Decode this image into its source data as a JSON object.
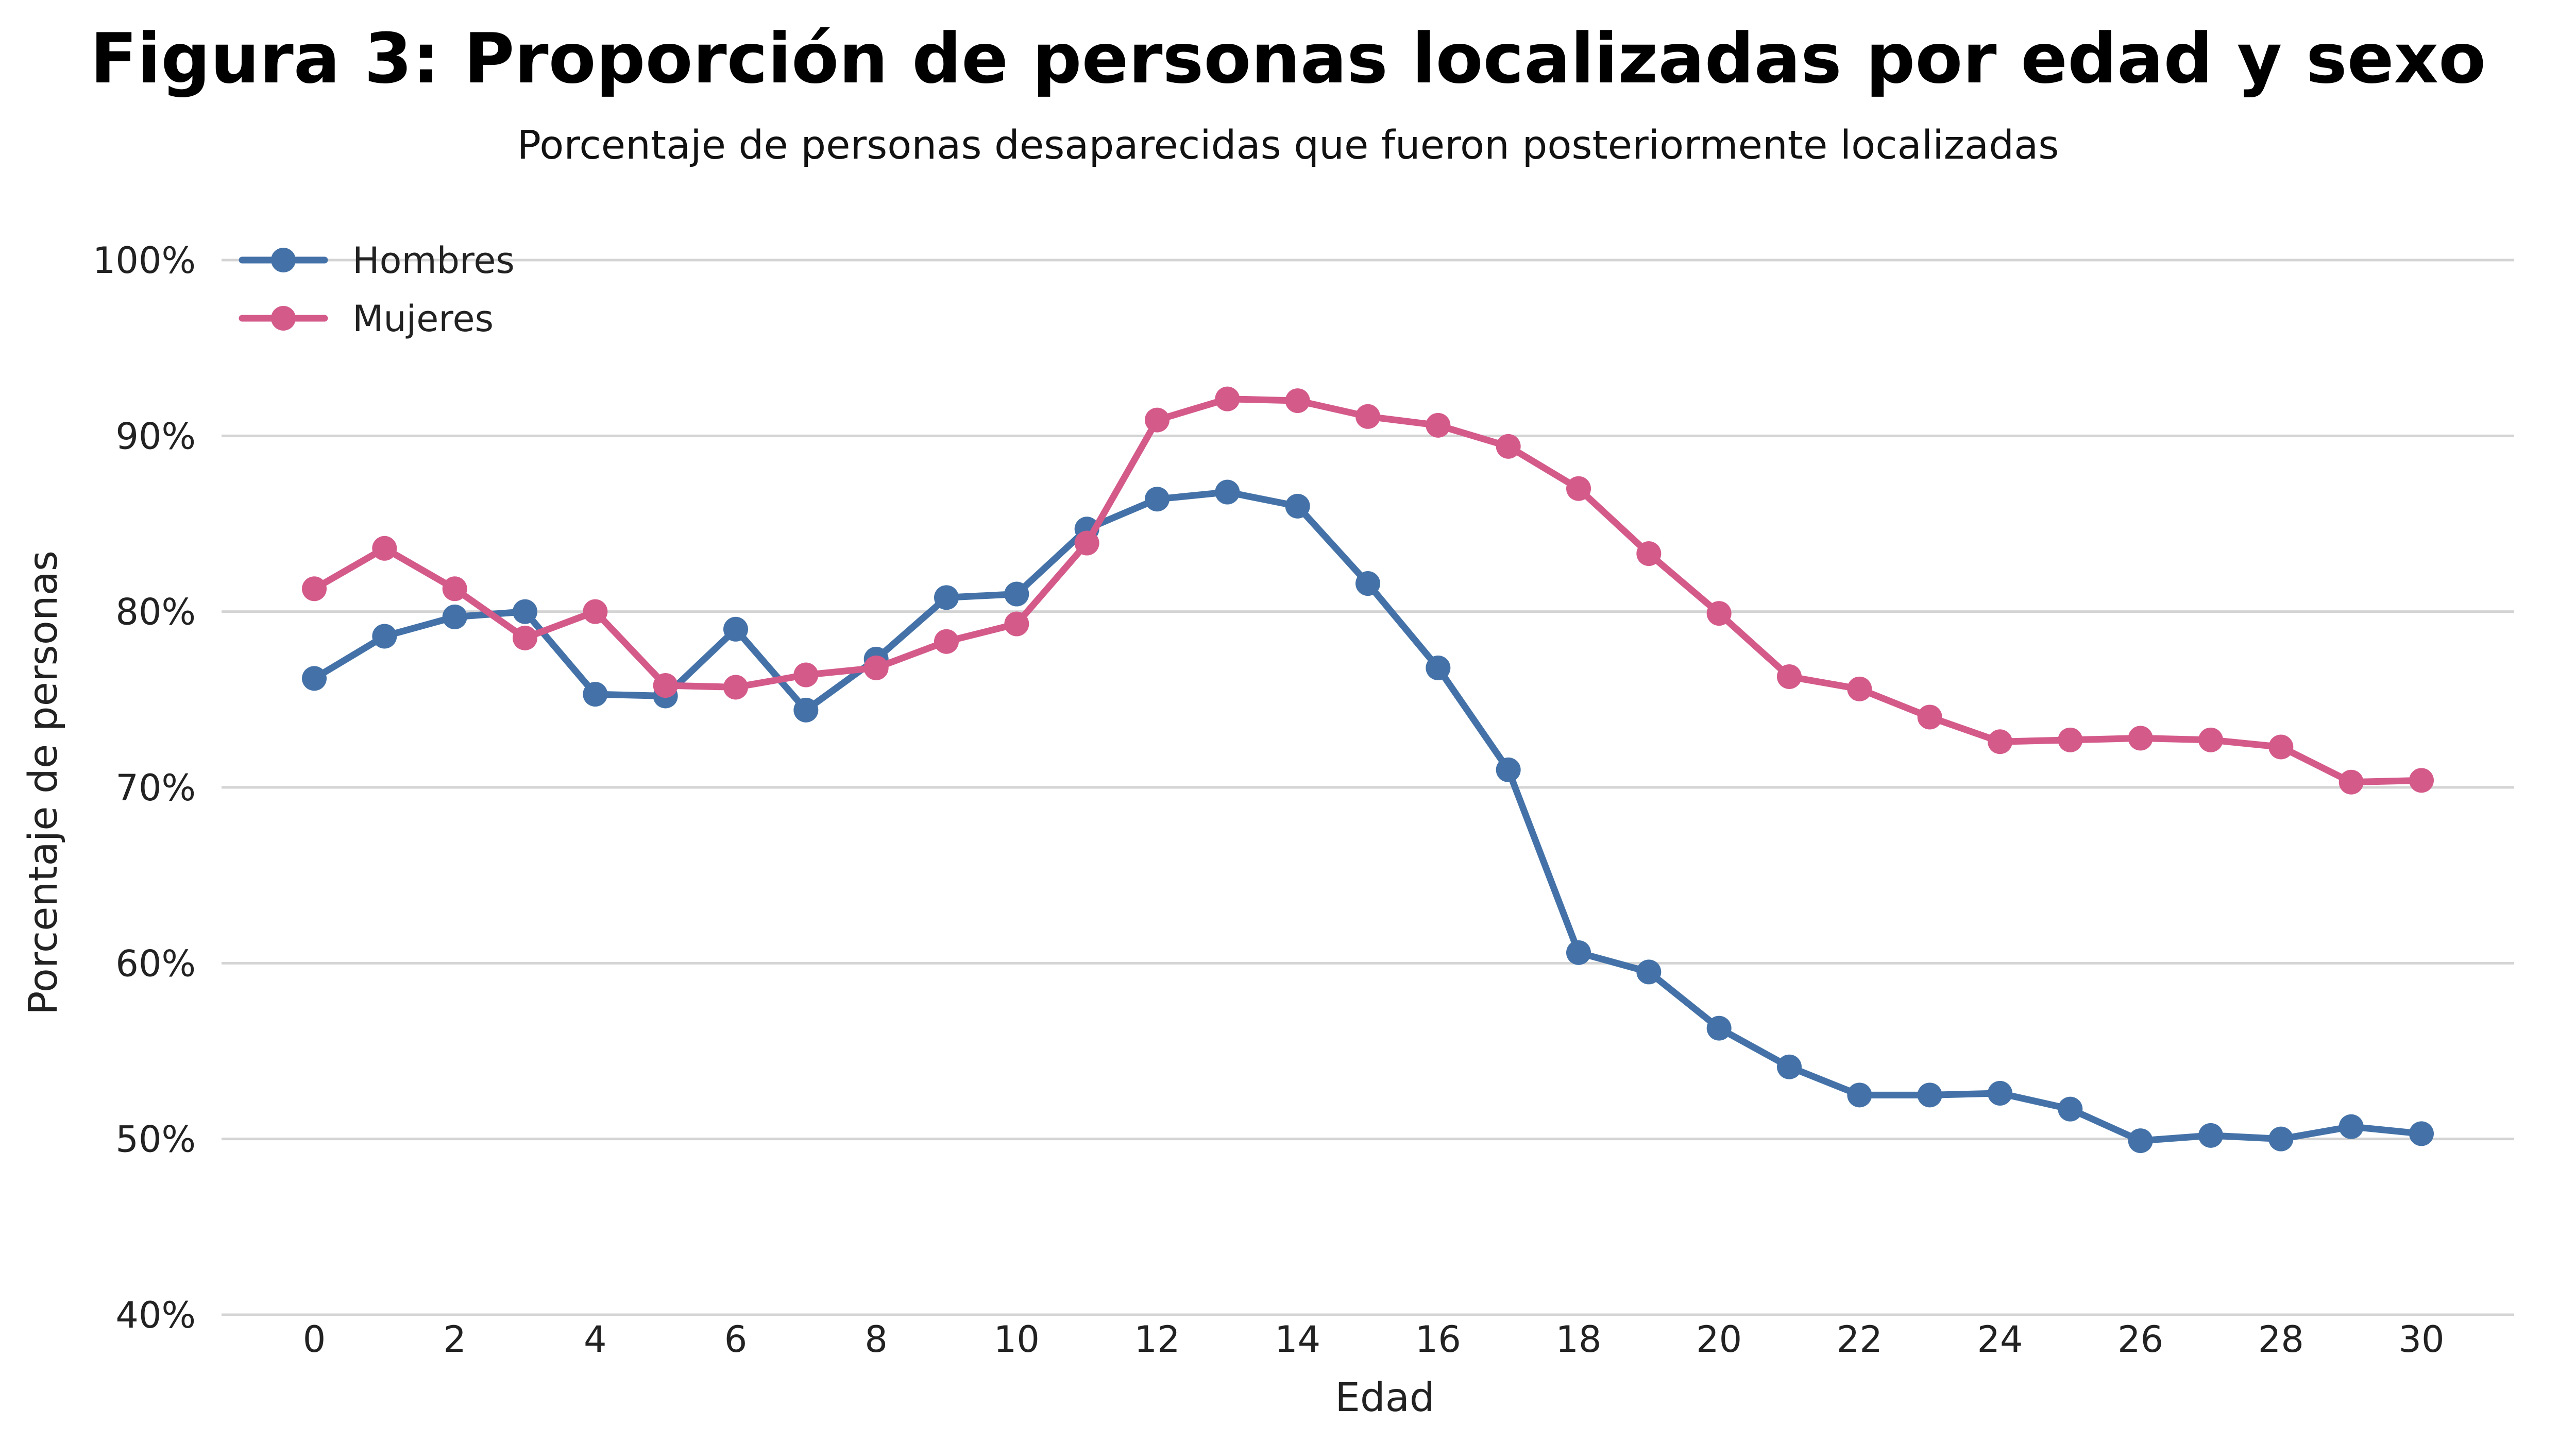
{
  "chart_data": {
    "type": "line",
    "title": "Figura 3: Proporción de personas localizadas por edad y sexo",
    "subtitle": "Porcentaje de personas desaparecidas que fueron posteriormente localizadas",
    "xlabel": "Edad",
    "ylabel": "Porcentaje de personas",
    "xlim": [
      0,
      30
    ],
    "ylim": [
      40,
      100
    ],
    "x_ticks": [
      "0",
      "2",
      "4",
      "6",
      "8",
      "10",
      "12",
      "14",
      "16",
      "18",
      "20",
      "22",
      "24",
      "26",
      "28",
      "30"
    ],
    "y_ticks": [
      "40%",
      "50%",
      "60%",
      "70%",
      "80%",
      "90%",
      "100%"
    ],
    "grid": "horizontal",
    "legend_position": "top-left",
    "x": [
      0,
      1,
      2,
      3,
      4,
      5,
      6,
      7,
      8,
      9,
      10,
      11,
      12,
      13,
      14,
      15,
      16,
      17,
      18,
      19,
      20,
      21,
      22,
      23,
      24,
      25,
      26,
      27,
      28,
      29,
      30
    ],
    "series": [
      {
        "name": "Hombres",
        "color": "#4472a8",
        "values": [
          76.2,
          78.6,
          79.7,
          80.0,
          75.3,
          75.2,
          79.0,
          74.4,
          77.3,
          80.8,
          81.0,
          84.7,
          86.4,
          86.8,
          86.0,
          81.6,
          76.8,
          71.0,
          60.6,
          59.5,
          56.3,
          54.1,
          52.5,
          52.5,
          52.6,
          51.7,
          49.9,
          50.2,
          50.0,
          50.7,
          50.3
        ]
      },
      {
        "name": "Mujeres",
        "color": "#d45a8a",
        "values": [
          81.3,
          83.6,
          81.3,
          78.5,
          80.0,
          75.8,
          75.7,
          76.4,
          76.8,
          78.3,
          79.3,
          83.9,
          90.9,
          92.1,
          92.0,
          91.1,
          90.6,
          89.4,
          87.0,
          83.3,
          79.9,
          76.3,
          75.6,
          74.0,
          72.6,
          72.7,
          72.8,
          72.7,
          72.3,
          70.3,
          70.4
        ]
      }
    ]
  }
}
